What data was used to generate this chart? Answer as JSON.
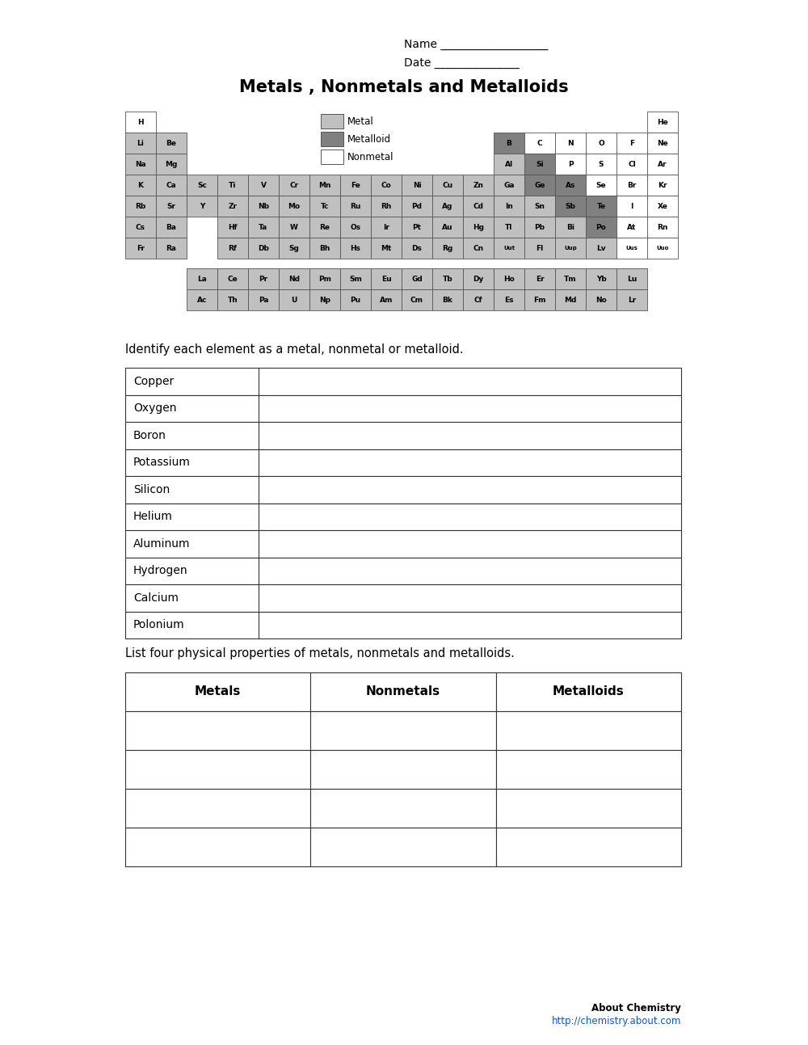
{
  "title": "Metals , Nonmetals and Metalloids",
  "name_label": "Name ",
  "name_underline": "___________________",
  "date_label": "Date ",
  "date_underline": "_______________",
  "bg_color": "#ffffff",
  "metal_color": "#c0c0c0",
  "metalloid_color": "#808080",
  "nonmetal_color": "#ffffff",
  "element_border": "#555555",
  "legend_labels": [
    "Metal",
    "Metalloid",
    "Nonmetal"
  ],
  "identify_label": "Identify each element as a metal, nonmetal or metalloid.",
  "list_label": "List four physical properties of metals, nonmetals and metalloids.",
  "elements_list": [
    "Copper",
    "Oxygen",
    "Boron",
    "Potassium",
    "Silicon",
    "Helium",
    "Aluminum",
    "Hydrogen",
    "Calcium",
    "Polonium"
  ],
  "properties_headers": [
    "Metals",
    "Nonmetals",
    "Metalloids"
  ],
  "footer_text": "About Chemistry",
  "footer_url": "http://chemistry.about.com",
  "periodic_table": {
    "rows": [
      {
        "row": 1,
        "cells": [
          {
            "sym": "H",
            "col": 1,
            "type": "nonmetal"
          },
          {
            "sym": "He",
            "col": 18,
            "type": "nonmetal"
          }
        ]
      },
      {
        "row": 2,
        "cells": [
          {
            "sym": "Li",
            "col": 1,
            "type": "metal"
          },
          {
            "sym": "Be",
            "col": 2,
            "type": "metal"
          },
          {
            "sym": "B",
            "col": 13,
            "type": "metalloid"
          },
          {
            "sym": "C",
            "col": 14,
            "type": "nonmetal"
          },
          {
            "sym": "N",
            "col": 15,
            "type": "nonmetal"
          },
          {
            "sym": "O",
            "col": 16,
            "type": "nonmetal"
          },
          {
            "sym": "F",
            "col": 17,
            "type": "nonmetal"
          },
          {
            "sym": "Ne",
            "col": 18,
            "type": "nonmetal"
          }
        ]
      },
      {
        "row": 3,
        "cells": [
          {
            "sym": "Na",
            "col": 1,
            "type": "metal"
          },
          {
            "sym": "Mg",
            "col": 2,
            "type": "metal"
          },
          {
            "sym": "Al",
            "col": 13,
            "type": "metal"
          },
          {
            "sym": "Si",
            "col": 14,
            "type": "metalloid"
          },
          {
            "sym": "P",
            "col": 15,
            "type": "nonmetal"
          },
          {
            "sym": "S",
            "col": 16,
            "type": "nonmetal"
          },
          {
            "sym": "Cl",
            "col": 17,
            "type": "nonmetal"
          },
          {
            "sym": "Ar",
            "col": 18,
            "type": "nonmetal"
          }
        ]
      },
      {
        "row": 4,
        "cells": [
          {
            "sym": "K",
            "col": 1,
            "type": "metal"
          },
          {
            "sym": "Ca",
            "col": 2,
            "type": "metal"
          },
          {
            "sym": "Sc",
            "col": 3,
            "type": "metal"
          },
          {
            "sym": "Ti",
            "col": 4,
            "type": "metal"
          },
          {
            "sym": "V",
            "col": 5,
            "type": "metal"
          },
          {
            "sym": "Cr",
            "col": 6,
            "type": "metal"
          },
          {
            "sym": "Mn",
            "col": 7,
            "type": "metal"
          },
          {
            "sym": "Fe",
            "col": 8,
            "type": "metal"
          },
          {
            "sym": "Co",
            "col": 9,
            "type": "metal"
          },
          {
            "sym": "Ni",
            "col": 10,
            "type": "metal"
          },
          {
            "sym": "Cu",
            "col": 11,
            "type": "metal"
          },
          {
            "sym": "Zn",
            "col": 12,
            "type": "metal"
          },
          {
            "sym": "Ga",
            "col": 13,
            "type": "metal"
          },
          {
            "sym": "Ge",
            "col": 14,
            "type": "metalloid"
          },
          {
            "sym": "As",
            "col": 15,
            "type": "metalloid"
          },
          {
            "sym": "Se",
            "col": 16,
            "type": "nonmetal"
          },
          {
            "sym": "Br",
            "col": 17,
            "type": "nonmetal"
          },
          {
            "sym": "Kr",
            "col": 18,
            "type": "nonmetal"
          }
        ]
      },
      {
        "row": 5,
        "cells": [
          {
            "sym": "Rb",
            "col": 1,
            "type": "metal"
          },
          {
            "sym": "Sr",
            "col": 2,
            "type": "metal"
          },
          {
            "sym": "Y",
            "col": 3,
            "type": "metal"
          },
          {
            "sym": "Zr",
            "col": 4,
            "type": "metal"
          },
          {
            "sym": "Nb",
            "col": 5,
            "type": "metal"
          },
          {
            "sym": "Mo",
            "col": 6,
            "type": "metal"
          },
          {
            "sym": "Tc",
            "col": 7,
            "type": "metal"
          },
          {
            "sym": "Ru",
            "col": 8,
            "type": "metal"
          },
          {
            "sym": "Rh",
            "col": 9,
            "type": "metal"
          },
          {
            "sym": "Pd",
            "col": 10,
            "type": "metal"
          },
          {
            "sym": "Ag",
            "col": 11,
            "type": "metal"
          },
          {
            "sym": "Cd",
            "col": 12,
            "type": "metal"
          },
          {
            "sym": "In",
            "col": 13,
            "type": "metal"
          },
          {
            "sym": "Sn",
            "col": 14,
            "type": "metal"
          },
          {
            "sym": "Sb",
            "col": 15,
            "type": "metalloid"
          },
          {
            "sym": "Te",
            "col": 16,
            "type": "metalloid"
          },
          {
            "sym": "I",
            "col": 17,
            "type": "nonmetal"
          },
          {
            "sym": "Xe",
            "col": 18,
            "type": "nonmetal"
          }
        ]
      },
      {
        "row": 6,
        "cells": [
          {
            "sym": "Cs",
            "col": 1,
            "type": "metal"
          },
          {
            "sym": "Ba",
            "col": 2,
            "type": "metal"
          },
          {
            "sym": "Hf",
            "col": 4,
            "type": "metal"
          },
          {
            "sym": "Ta",
            "col": 5,
            "type": "metal"
          },
          {
            "sym": "W",
            "col": 6,
            "type": "metal"
          },
          {
            "sym": "Re",
            "col": 7,
            "type": "metal"
          },
          {
            "sym": "Os",
            "col": 8,
            "type": "metal"
          },
          {
            "sym": "Ir",
            "col": 9,
            "type": "metal"
          },
          {
            "sym": "Pt",
            "col": 10,
            "type": "metal"
          },
          {
            "sym": "Au",
            "col": 11,
            "type": "metal"
          },
          {
            "sym": "Hg",
            "col": 12,
            "type": "metal"
          },
          {
            "sym": "Tl",
            "col": 13,
            "type": "metal"
          },
          {
            "sym": "Pb",
            "col": 14,
            "type": "metal"
          },
          {
            "sym": "Bi",
            "col": 15,
            "type": "metal"
          },
          {
            "sym": "Po",
            "col": 16,
            "type": "metalloid"
          },
          {
            "sym": "At",
            "col": 17,
            "type": "nonmetal"
          },
          {
            "sym": "Rn",
            "col": 18,
            "type": "nonmetal"
          }
        ]
      },
      {
        "row": 7,
        "cells": [
          {
            "sym": "Fr",
            "col": 1,
            "type": "metal"
          },
          {
            "sym": "Ra",
            "col": 2,
            "type": "metal"
          },
          {
            "sym": "Rf",
            "col": 4,
            "type": "metal"
          },
          {
            "sym": "Db",
            "col": 5,
            "type": "metal"
          },
          {
            "sym": "Sg",
            "col": 6,
            "type": "metal"
          },
          {
            "sym": "Bh",
            "col": 7,
            "type": "metal"
          },
          {
            "sym": "Hs",
            "col": 8,
            "type": "metal"
          },
          {
            "sym": "Mt",
            "col": 9,
            "type": "metal"
          },
          {
            "sym": "Ds",
            "col": 10,
            "type": "metal"
          },
          {
            "sym": "Rg",
            "col": 11,
            "type": "metal"
          },
          {
            "sym": "Cn",
            "col": 12,
            "type": "metal"
          },
          {
            "sym": "Uut",
            "col": 13,
            "type": "metal"
          },
          {
            "sym": "Fl",
            "col": 14,
            "type": "metal"
          },
          {
            "sym": "Uup",
            "col": 15,
            "type": "metal"
          },
          {
            "sym": "Lv",
            "col": 16,
            "type": "metal"
          },
          {
            "sym": "Uus",
            "col": 17,
            "type": "nonmetal"
          },
          {
            "sym": "Uuo",
            "col": 18,
            "type": "nonmetal"
          }
        ]
      },
      {
        "row": 9,
        "cells": [
          {
            "sym": "La",
            "col": 3,
            "type": "metal"
          },
          {
            "sym": "Ce",
            "col": 4,
            "type": "metal"
          },
          {
            "sym": "Pr",
            "col": 5,
            "type": "metal"
          },
          {
            "sym": "Nd",
            "col": 6,
            "type": "metal"
          },
          {
            "sym": "Pm",
            "col": 7,
            "type": "metal"
          },
          {
            "sym": "Sm",
            "col": 8,
            "type": "metal"
          },
          {
            "sym": "Eu",
            "col": 9,
            "type": "metal"
          },
          {
            "sym": "Gd",
            "col": 10,
            "type": "metal"
          },
          {
            "sym": "Tb",
            "col": 11,
            "type": "metal"
          },
          {
            "sym": "Dy",
            "col": 12,
            "type": "metal"
          },
          {
            "sym": "Ho",
            "col": 13,
            "type": "metal"
          },
          {
            "sym": "Er",
            "col": 14,
            "type": "metal"
          },
          {
            "sym": "Tm",
            "col": 15,
            "type": "metal"
          },
          {
            "sym": "Yb",
            "col": 16,
            "type": "metal"
          },
          {
            "sym": "Lu",
            "col": 17,
            "type": "metal"
          }
        ]
      },
      {
        "row": 10,
        "cells": [
          {
            "sym": "Ac",
            "col": 3,
            "type": "metal"
          },
          {
            "sym": "Th",
            "col": 4,
            "type": "metal"
          },
          {
            "sym": "Pa",
            "col": 5,
            "type": "metal"
          },
          {
            "sym": "U",
            "col": 6,
            "type": "metal"
          },
          {
            "sym": "Np",
            "col": 7,
            "type": "metal"
          },
          {
            "sym": "Pu",
            "col": 8,
            "type": "metal"
          },
          {
            "sym": "Am",
            "col": 9,
            "type": "metal"
          },
          {
            "sym": "Cm",
            "col": 10,
            "type": "metal"
          },
          {
            "sym": "Bk",
            "col": 11,
            "type": "metal"
          },
          {
            "sym": "Cf",
            "col": 12,
            "type": "metal"
          },
          {
            "sym": "Es",
            "col": 13,
            "type": "metal"
          },
          {
            "sym": "Fm",
            "col": 14,
            "type": "metal"
          },
          {
            "sym": "Md",
            "col": 15,
            "type": "metal"
          },
          {
            "sym": "No",
            "col": 16,
            "type": "metal"
          },
          {
            "sym": "Lr",
            "col": 17,
            "type": "metal"
          }
        ]
      }
    ]
  }
}
